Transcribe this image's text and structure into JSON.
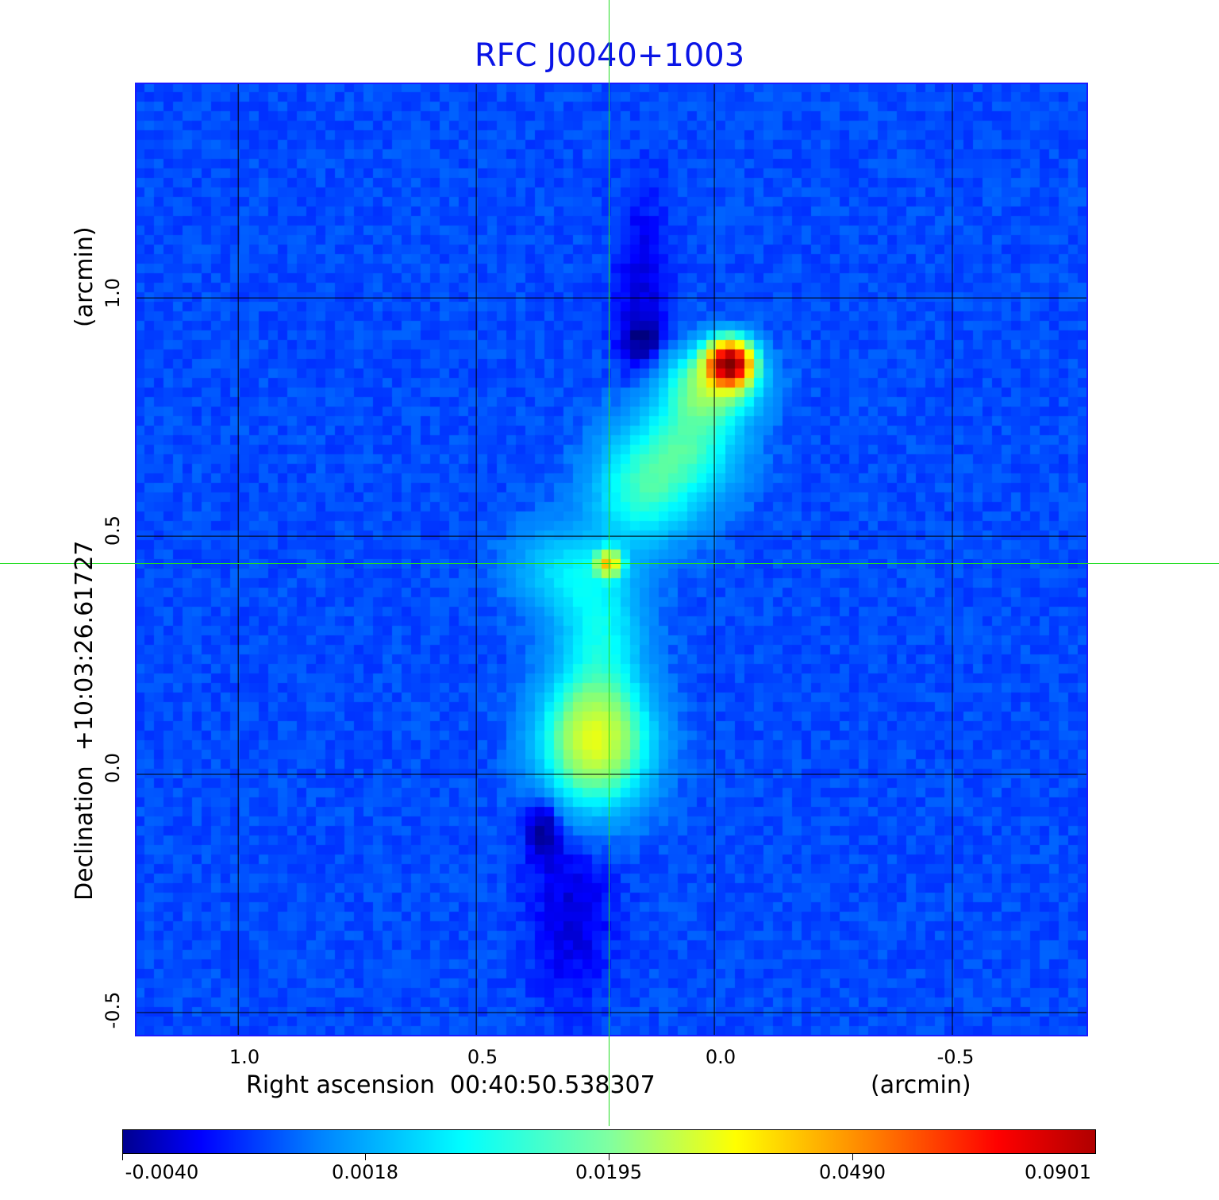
{
  "chart_data": {
    "type": "heatmap",
    "title": "RFC J0040+1003",
    "xlabel": "Right ascension  00:40:50.538307",
    "xunit": "(arcmin)",
    "ylabel": "Declination  +10:03:26.61727",
    "yunit": "(arcmin)",
    "xlim": [
      1.217,
      -0.785
    ],
    "ylim": [
      -0.55,
      1.452
    ],
    "xticks": [
      "1.0",
      "0.5",
      "0.0",
      "-0.5"
    ],
    "xtick_values": [
      1.0,
      0.5,
      0.0,
      -0.5
    ],
    "yticks": [
      "1.0",
      "0.5",
      "0.0",
      "-0.5"
    ],
    "ytick_values": [
      1.0,
      0.5,
      0.0,
      -0.5
    ],
    "grid": true,
    "crosshair": {
      "x": 0.222,
      "y": 0.443
    },
    "colorbar": {
      "colormap": "jet",
      "ticks": [
        "-0.0040",
        "0.0018",
        "0.0195",
        "0.0490",
        "0.0901"
      ],
      "tick_values": [
        -0.004,
        0.0018,
        0.0195,
        0.049,
        0.0901
      ]
    },
    "background_level": 0.0006,
    "components": [
      {
        "x": -0.033,
        "y": 0.863,
        "sx": 0.03,
        "sy": 0.03,
        "peak": 0.085
      },
      {
        "x": 0.0,
        "y": 0.82,
        "sx": 0.06,
        "sy": 0.05,
        "peak": 0.02
      },
      {
        "x": 0.05,
        "y": 0.7,
        "sx": 0.07,
        "sy": 0.08,
        "peak": 0.013
      },
      {
        "x": 0.15,
        "y": 0.6,
        "sx": 0.07,
        "sy": 0.08,
        "peak": 0.013
      },
      {
        "x": 0.222,
        "y": 0.443,
        "sx": 0.018,
        "sy": 0.018,
        "peak": 0.035
      },
      {
        "x": 0.32,
        "y": 0.43,
        "sx": 0.07,
        "sy": 0.06,
        "peak": 0.007
      },
      {
        "x": 0.24,
        "y": 0.3,
        "sx": 0.06,
        "sy": 0.1,
        "peak": 0.01
      },
      {
        "x": 0.25,
        "y": 0.07,
        "sx": 0.07,
        "sy": 0.085,
        "peak": 0.03
      },
      {
        "x": 0.36,
        "y": -0.11,
        "sx": 0.025,
        "sy": 0.05,
        "peak": -0.0045
      },
      {
        "x": 0.3,
        "y": -0.3,
        "sx": 0.06,
        "sy": 0.12,
        "peak": -0.0025
      },
      {
        "x": 0.15,
        "y": 1.0,
        "sx": 0.04,
        "sy": 0.15,
        "peak": -0.0025
      },
      {
        "x": 0.15,
        "y": 0.91,
        "sx": 0.03,
        "sy": 0.03,
        "peak": -0.003
      }
    ]
  }
}
